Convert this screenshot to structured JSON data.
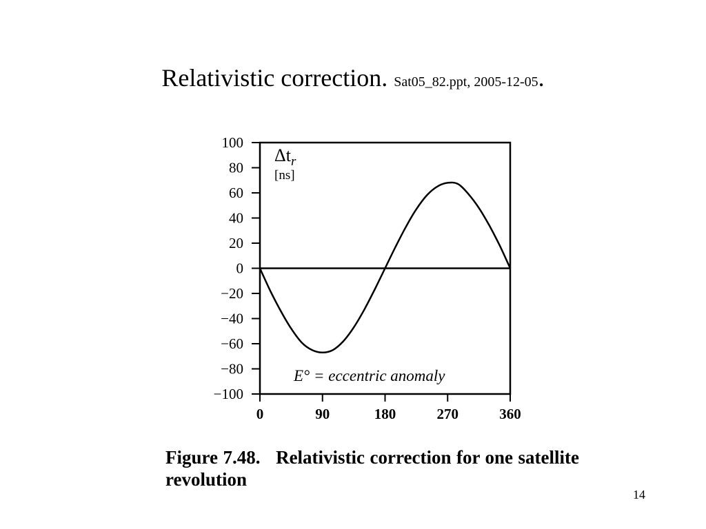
{
  "slide": {
    "title": "Relativistic correction.",
    "subtitle": "Sat05_82.ppt, 2005-12-05",
    "title_end": ".",
    "page_number": "14"
  },
  "caption": {
    "figure_label": "Figure 7.48.",
    "text": "Relativistic correction for one satellite revolution"
  },
  "chart_data": {
    "type": "line",
    "title": "",
    "ylabel": "Δt",
    "ylabel_sub": "r",
    "yunit": "[ns]",
    "xlabel": "E° = eccentric anomaly",
    "xlim": [
      0,
      360
    ],
    "ylim": [
      -100,
      100
    ],
    "x_ticks": [
      0,
      90,
      180,
      270,
      360
    ],
    "x_tick_labels": [
      "0",
      "90",
      "180",
      "270",
      "360"
    ],
    "y_ticks": [
      100,
      80,
      60,
      40,
      20,
      0,
      -20,
      -40,
      -60,
      -80,
      -100
    ],
    "y_tick_labels": [
      "100",
      "80",
      "60",
      "40",
      "20",
      "0",
      "−20",
      "−40",
      "−60",
      "−80",
      "−100"
    ],
    "grid": false,
    "series": [
      {
        "x": [
          0,
          15,
          30,
          45,
          60,
          75,
          90,
          105,
          120,
          135,
          150,
          165,
          180,
          195,
          210,
          225,
          240,
          255,
          270,
          285,
          300,
          315,
          330,
          345,
          360
        ],
        "values": [
          0,
          -18,
          -34,
          -48,
          -59,
          -65,
          -67,
          -65,
          -58,
          -47,
          -33,
          -17,
          0,
          17,
          33,
          47,
          58,
          65,
          68,
          67,
          59,
          48,
          34,
          18,
          0
        ]
      }
    ],
    "reference_lines": [
      {
        "y": 0
      }
    ]
  }
}
